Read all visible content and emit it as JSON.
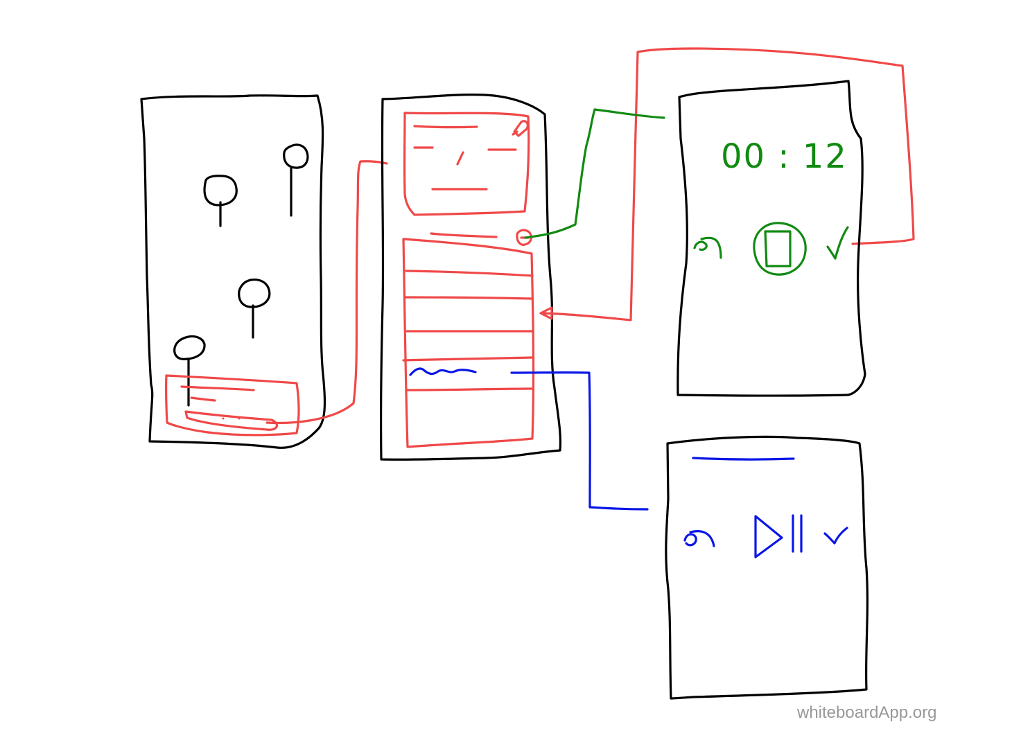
{
  "board": {
    "timer_text": "00 : 12",
    "watermark": "whiteboardApp.org"
  },
  "colors": {
    "frame": "#000000",
    "flow_red": "#f04848",
    "flow_green": "#118a11",
    "flow_blue": "#0a16e6",
    "background": "#ffffff",
    "watermark": "#999999"
  },
  "icons": {
    "map_pins": "map-pin-icon",
    "edit": "pencil-icon",
    "timer": "timer-icon",
    "undo": "undo-icon",
    "stop": "stop-icon",
    "confirm": "checkmark-icon",
    "play_pause": "play-pause-icon"
  }
}
